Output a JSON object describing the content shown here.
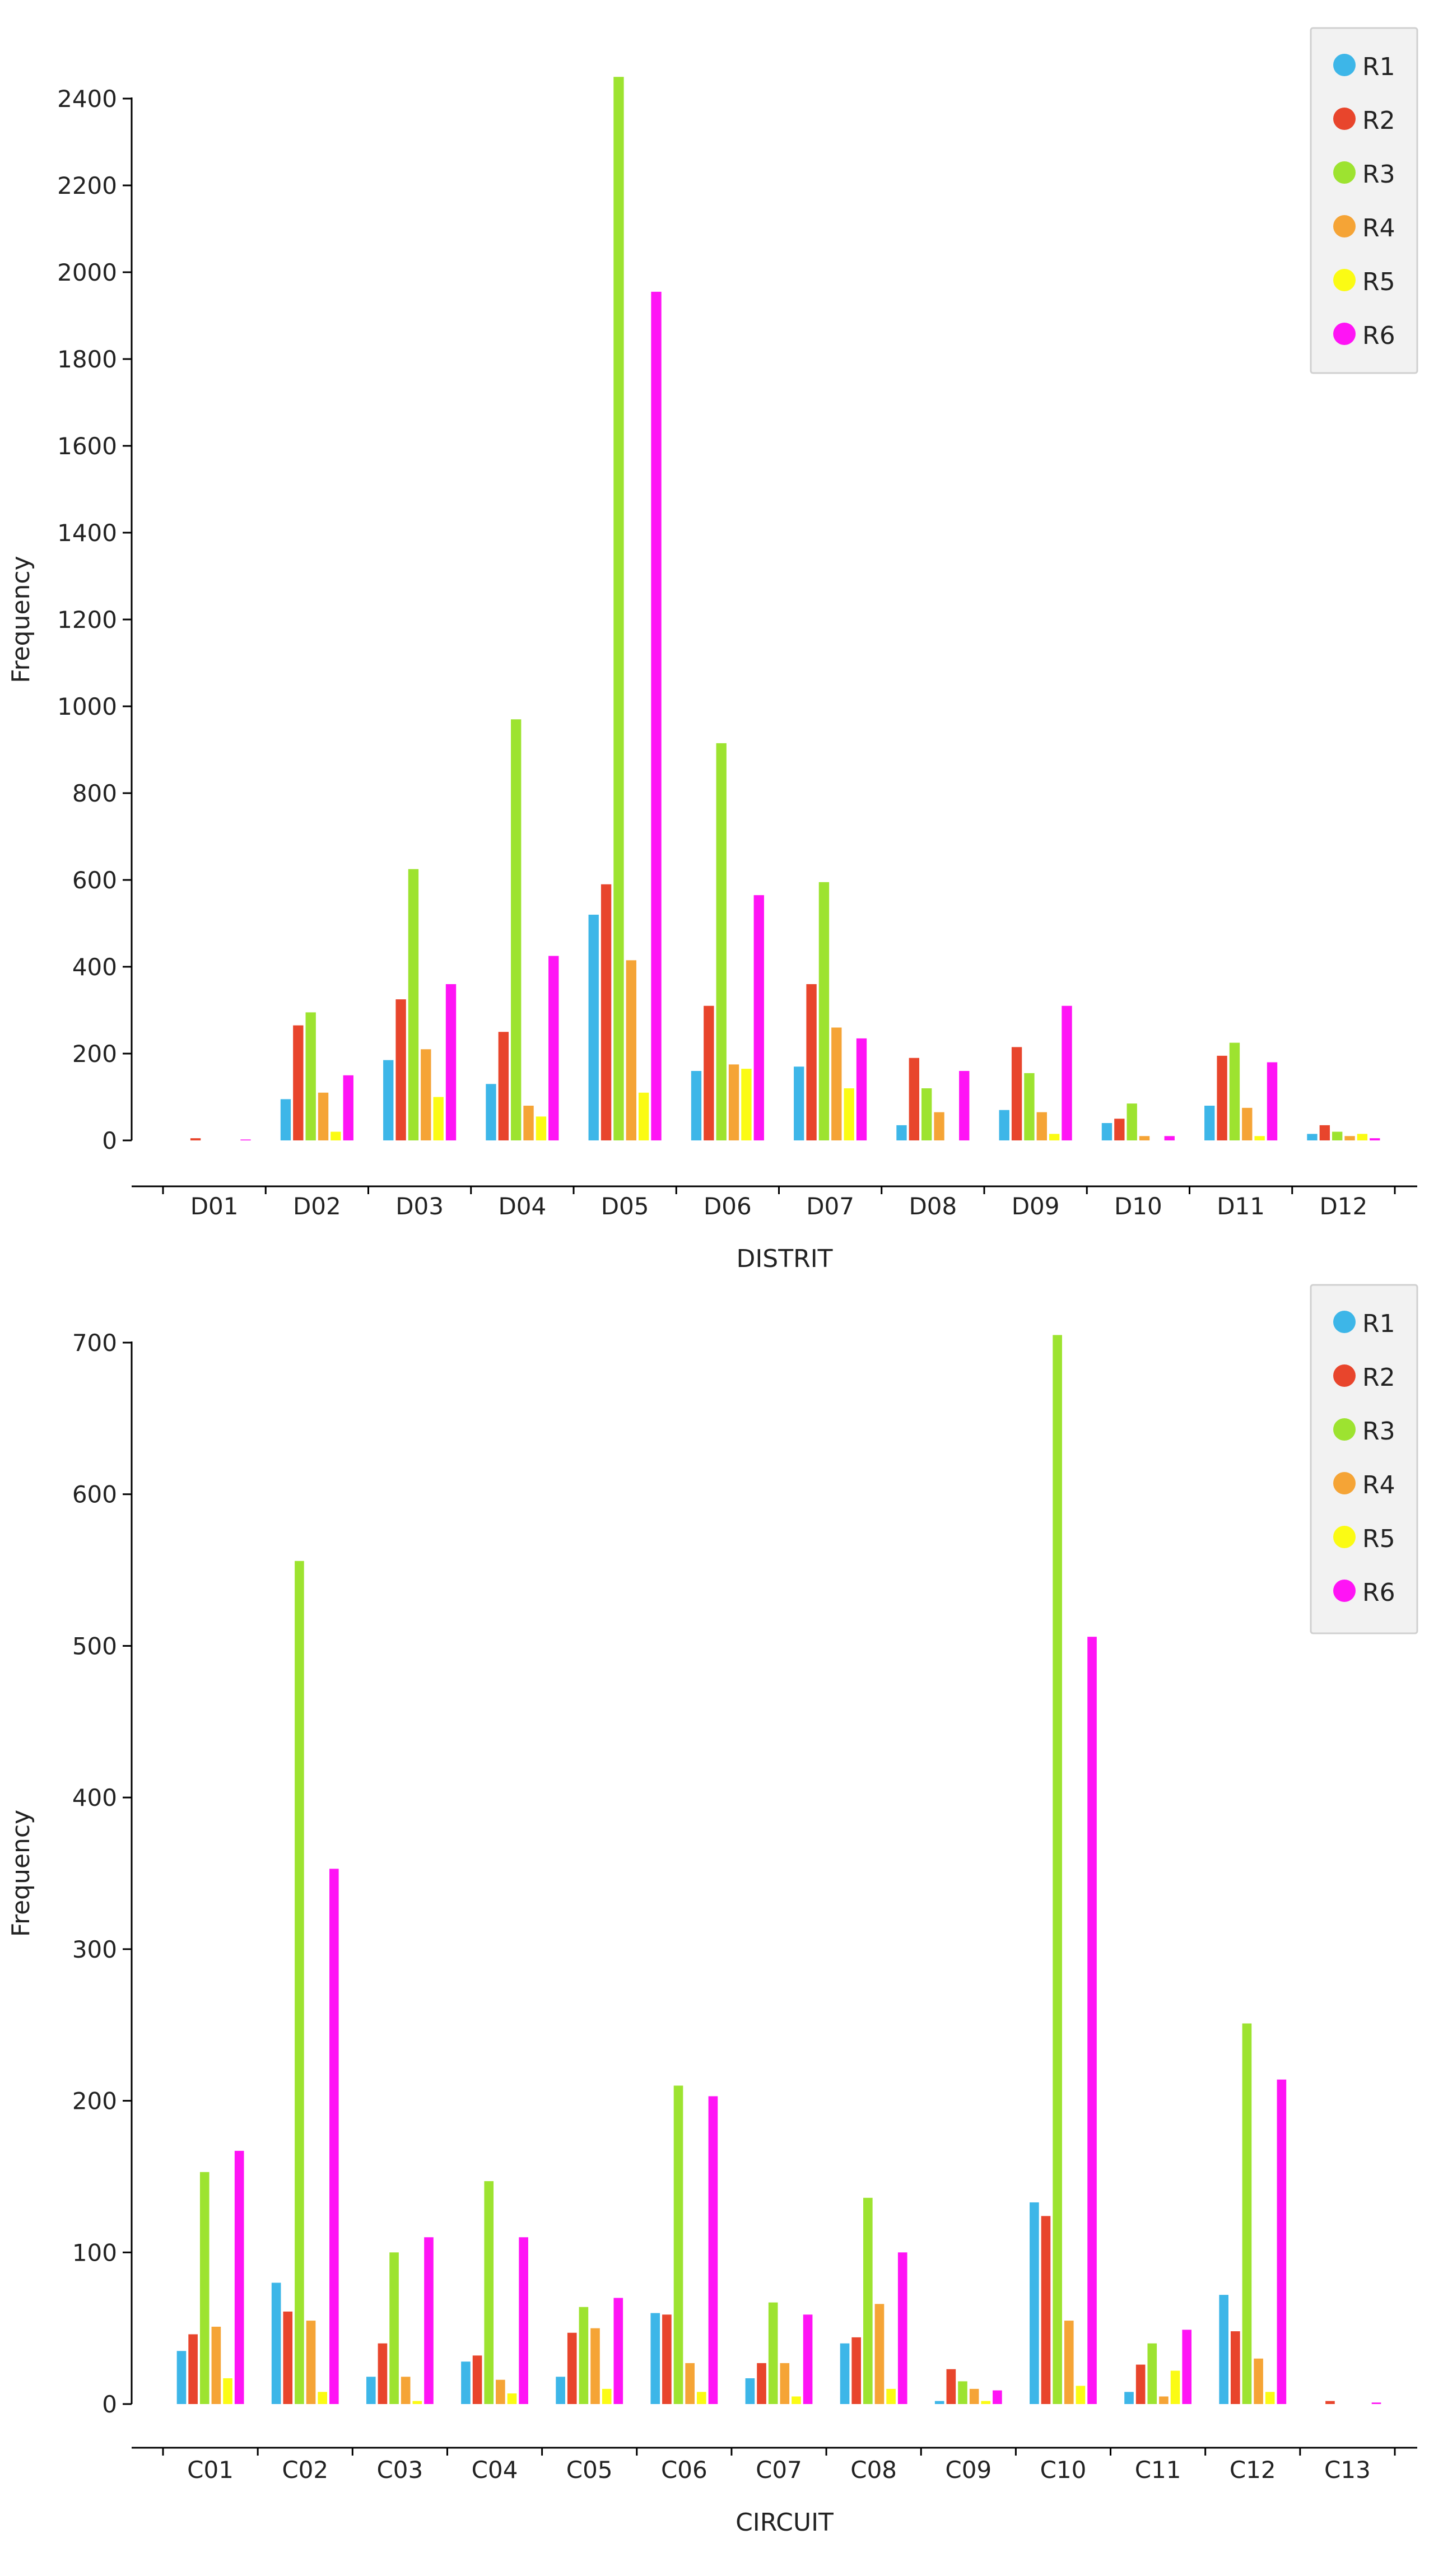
{
  "chart_data": [
    {
      "type": "bar",
      "xlabel": "DISTRIT",
      "ylabel": "Frequency",
      "ylim": [
        0,
        2400
      ],
      "yticks": [
        0,
        200,
        400,
        600,
        800,
        1000,
        1200,
        1400,
        1600,
        1800,
        2000,
        2200,
        2400
      ],
      "legend_position": "top-right",
      "categories": [
        "D01",
        "D02",
        "D03",
        "D04",
        "D05",
        "D06",
        "D07",
        "D08",
        "D09",
        "D10",
        "D11",
        "D12"
      ],
      "series": [
        {
          "name": "R1",
          "color": "#3db6e8",
          "values": [
            0,
            95,
            185,
            130,
            520,
            160,
            170,
            35,
            70,
            40,
            80,
            15
          ]
        },
        {
          "name": "R2",
          "color": "#e8452c",
          "values": [
            5,
            265,
            325,
            250,
            590,
            310,
            360,
            190,
            215,
            50,
            195,
            35
          ]
        },
        {
          "name": "R3",
          "color": "#9de330",
          "values": [
            0,
            295,
            625,
            970,
            2450,
            915,
            595,
            120,
            155,
            85,
            225,
            20
          ]
        },
        {
          "name": "R4",
          "color": "#f5a436",
          "values": [
            0,
            110,
            210,
            80,
            415,
            175,
            260,
            65,
            65,
            10,
            75,
            10
          ]
        },
        {
          "name": "R5",
          "color": "#fbfb14",
          "values": [
            0,
            20,
            100,
            55,
            110,
            165,
            120,
            0,
            15,
            0,
            10,
            15
          ]
        },
        {
          "name": "R6",
          "color": "#ff14f5",
          "values": [
            2,
            150,
            360,
            425,
            1955,
            565,
            235,
            160,
            310,
            10,
            180,
            5
          ]
        }
      ]
    },
    {
      "type": "bar",
      "xlabel": "CIRCUIT",
      "ylabel": "Frequency",
      "ylim": [
        0,
        700
      ],
      "yticks": [
        0,
        100,
        200,
        300,
        400,
        500,
        600,
        700
      ],
      "legend_position": "top-right",
      "categories": [
        "C01",
        "C02",
        "C03",
        "C04",
        "C05",
        "C06",
        "C07",
        "C08",
        "C09",
        "C10",
        "C11",
        "C12",
        "C13"
      ],
      "series": [
        {
          "name": "R1",
          "color": "#3db6e8",
          "values": [
            35,
            80,
            18,
            28,
            18,
            60,
            17,
            40,
            2,
            133,
            8,
            72,
            0
          ]
        },
        {
          "name": "R2",
          "color": "#e8452c",
          "values": [
            46,
            61,
            40,
            32,
            47,
            59,
            27,
            44,
            23,
            124,
            26,
            48,
            2
          ]
        },
        {
          "name": "R3",
          "color": "#9de330",
          "values": [
            153,
            556,
            100,
            147,
            64,
            210,
            67,
            136,
            15,
            705,
            40,
            251,
            0
          ]
        },
        {
          "name": "R4",
          "color": "#f5a436",
          "values": [
            51,
            55,
            18,
            16,
            50,
            27,
            27,
            66,
            10,
            55,
            5,
            30,
            0
          ]
        },
        {
          "name": "R5",
          "color": "#fbfb14",
          "values": [
            17,
            8,
            2,
            7,
            10,
            8,
            5,
            10,
            2,
            12,
            22,
            8,
            0
          ]
        },
        {
          "name": "R6",
          "color": "#ff14f5",
          "values": [
            167,
            353,
            110,
            110,
            70,
            203,
            59,
            100,
            9,
            506,
            49,
            214,
            1
          ]
        }
      ]
    }
  ]
}
